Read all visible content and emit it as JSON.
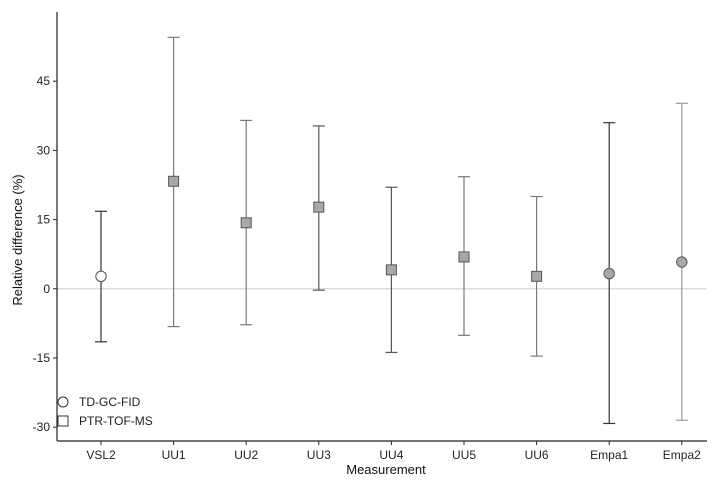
{
  "chart_data": {
    "type": "scatter",
    "title": "",
    "xlabel": "Measurement",
    "ylabel": "Relative difference (%)",
    "categories": [
      "VSL2",
      "UU1",
      "UU2",
      "UU3",
      "UU4",
      "UU5",
      "UU6",
      "Empa1",
      "Empa2"
    ],
    "ylim": [
      -33,
      60
    ],
    "yticks": [
      -30,
      -15,
      0,
      15,
      30,
      45
    ],
    "ytick_labels": [
      "-30",
      "-15",
      "0",
      "15",
      "30",
      "45"
    ],
    "reference_line": 0,
    "grid": false,
    "legend_position": "bottom-left",
    "series": [
      {
        "name": "TD-GC-FID",
        "marker": "circle",
        "points": [
          {
            "category": "VSL2",
            "y": 2.7,
            "low": -11.5,
            "high": 16.8,
            "color": "#ffffff",
            "error_color": "#333333"
          },
          {
            "category": "Empa1",
            "y": 3.3,
            "low": -29.2,
            "high": 36.0,
            "color": "#a8a8a8",
            "error_color": "#333333"
          },
          {
            "category": "Empa2",
            "y": 5.8,
            "low": -28.5,
            "high": 40.2,
            "color": "#a8a8a8",
            "error_color": "#9a9a9a"
          }
        ]
      },
      {
        "name": "PTR-TOF-MS",
        "marker": "square",
        "points": [
          {
            "category": "UU1",
            "y": 23.3,
            "low": -8.2,
            "high": 54.5,
            "color": "#a8a8a8",
            "error_color": "#7a7a7a"
          },
          {
            "category": "UU2",
            "y": 14.3,
            "low": -7.8,
            "high": 36.5,
            "color": "#a8a8a8",
            "error_color": "#7a7a7a"
          },
          {
            "category": "UU3",
            "y": 17.7,
            "low": -0.3,
            "high": 35.3,
            "color": "#a8a8a8",
            "error_color": "#555555"
          },
          {
            "category": "UU4",
            "y": 4.1,
            "low": -13.8,
            "high": 22.0,
            "color": "#a8a8a8",
            "error_color": "#555555"
          },
          {
            "category": "UU5",
            "y": 6.9,
            "low": -10.1,
            "high": 24.3,
            "color": "#a8a8a8",
            "error_color": "#7a7a7a"
          },
          {
            "category": "UU6",
            "y": 2.7,
            "low": -14.6,
            "high": 20.0,
            "color": "#a8a8a8",
            "error_color": "#7a7a7a"
          }
        ]
      }
    ],
    "legend": [
      {
        "label": "TD-GC-FID",
        "marker": "circle"
      },
      {
        "label": "PTR-TOF-MS",
        "marker": "square"
      }
    ],
    "colors": {
      "axis": "#222222",
      "zero_line": "#cfcfcf",
      "marker_edge": "#555555"
    }
  }
}
